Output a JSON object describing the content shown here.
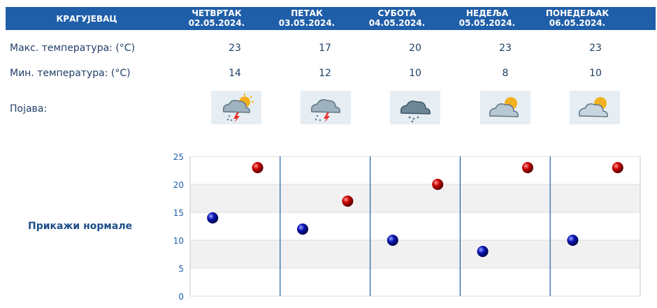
{
  "header": {
    "city": "КРАГУЈЕВАЦ"
  },
  "days": [
    {
      "name": "ЧЕТВРТАК",
      "date": "02.05.2024.",
      "max": "23",
      "min": "14",
      "icon": "thunderstorm-sun-icon"
    },
    {
      "name": "ПЕТАК",
      "date": "03.05.2024.",
      "max": "17",
      "min": "12",
      "icon": "thunderstorm-icon"
    },
    {
      "name": "СУБОТА",
      "date": "04.05.2024.",
      "max": "20",
      "min": "10",
      "icon": "rain-cloud-icon"
    },
    {
      "name": "НЕДЕЉА",
      "date": "05.05.2024.",
      "max": "23",
      "min": "8",
      "icon": "partly-cloudy-icon"
    },
    {
      "name": "ПОНЕДЕЉАК",
      "date": "06.05.2024.",
      "max": "23",
      "min": "10",
      "icon": "partly-cloudy-icon"
    }
  ],
  "labels": {
    "max": "Макс. температура: (°C)",
    "min": "Мин. температура: (°C)",
    "phenomenon": "Појава:"
  },
  "normals_link": "Прикажи нормале",
  "colors": {
    "header": "#1f5ea8",
    "max_marker": "#cc0000",
    "min_marker": "#0a14b4",
    "text": "#1f3f66"
  },
  "chart_data": {
    "type": "scatter",
    "categories": [
      "02.05.2024.",
      "03.05.2024.",
      "04.05.2024.",
      "05.05.2024.",
      "06.05.2024."
    ],
    "series": [
      {
        "values": [
          23,
          17,
          20,
          23,
          23
        ]
      },
      {
        "values": [
          14,
          12,
          10,
          8,
          10
        ]
      }
    ],
    "ylim": [
      0,
      25
    ],
    "yticks": [
      "0",
      "5",
      "10",
      "15",
      "20",
      "25"
    ],
    "grid": true
  }
}
